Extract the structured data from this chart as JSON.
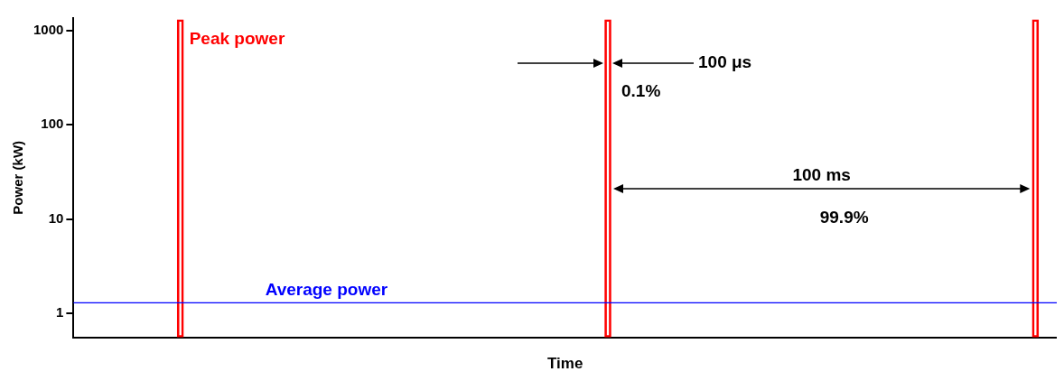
{
  "chart_data": {
    "type": "bar",
    "xlabel": "Time",
    "ylabel": "Power (kW)",
    "categories": [
      null,
      null,
      null,
      null,
      null,
      null,
      null,
      null,
      null,
      null,
      null,
      null,
      null,
      null,
      null,
      null,
      null,
      null,
      null,
      null,
      null,
      null,
      null
    ],
    "values": [
      null,
      null,
      1300,
      null,
      null,
      null,
      null,
      null,
      null,
      null,
      null,
      null,
      1300,
      null,
      null,
      null,
      null,
      null,
      null,
      null,
      null,
      null,
      1300
    ],
    "color": "#ff0000",
    "log": "y",
    "ylim": [
      0.56,
      1350
    ],
    "yticks": [
      1,
      10,
      100,
      1000
    ],
    "tick_labels": "y",
    "grid": false,
    "ref_lines": [
      {
        "axis": "y",
        "value": 1.3,
        "label": "Average power",
        "color": "#0000ff"
      }
    ],
    "annotations": [
      "Peak power",
      "100 μs",
      "0.1%",
      "100 ms",
      "99.9%"
    ]
  }
}
